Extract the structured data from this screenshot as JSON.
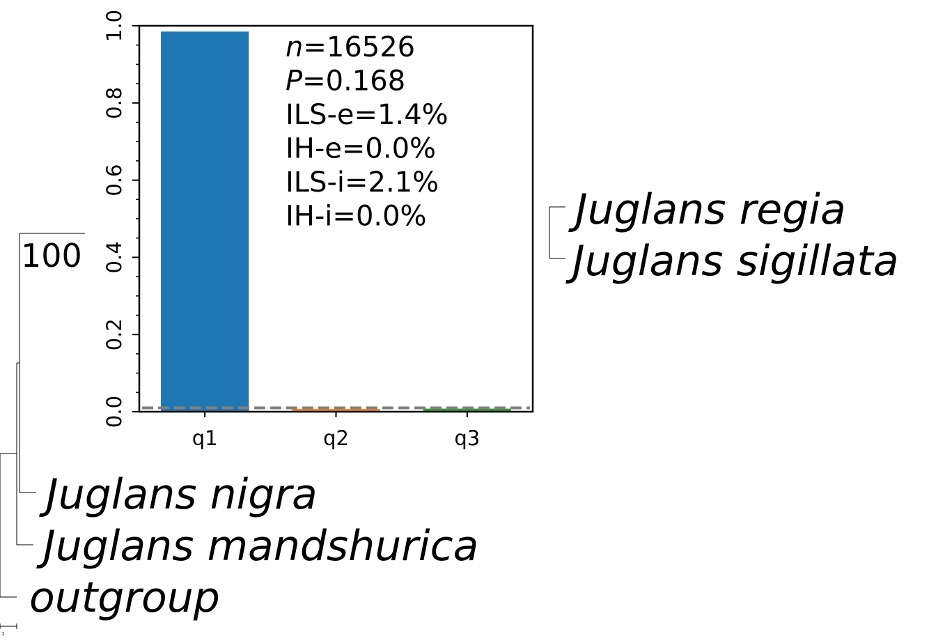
{
  "chart_data": {
    "type": "bar",
    "categories": [
      "q1",
      "q2",
      "q3"
    ],
    "values": [
      0.985,
      0.007,
      0.008
    ],
    "bar_colors": [
      "#1f77b4",
      "#ff7f0e",
      "#2ca02c"
    ],
    "ylim": [
      0,
      1
    ],
    "yticks": [
      "0.0",
      "0.2",
      "0.4",
      "0.6",
      "0.8",
      "1.0"
    ],
    "ytick_values": [
      0,
      0.2,
      0.4,
      0.6,
      0.8,
      1.0
    ],
    "reference_line": {
      "y": 0.01,
      "style": "dashed",
      "color": "#808080"
    },
    "annotations": [
      {
        "italic": "n",
        "rest": "=16526"
      },
      {
        "italic": "P",
        "rest": "=0.168"
      },
      {
        "italic": "",
        "rest": "ILS-e=1.4%"
      },
      {
        "italic": "",
        "rest": "IH-e=0.0%"
      },
      {
        "italic": "",
        "rest": "ILS-i=2.1%"
      },
      {
        "italic": "",
        "rest": "IH-i=0.0%"
      }
    ]
  },
  "tree": {
    "taxa": [
      "Juglans regia",
      "Juglans sigillata",
      "Juglans nigra",
      "Juglans mandshurica",
      "outgroup"
    ],
    "support_label": "100",
    "scale_label": "1"
  },
  "colors": {
    "axis": "#000000",
    "reference_line": "#808080",
    "tree_lines": "#000000"
  }
}
